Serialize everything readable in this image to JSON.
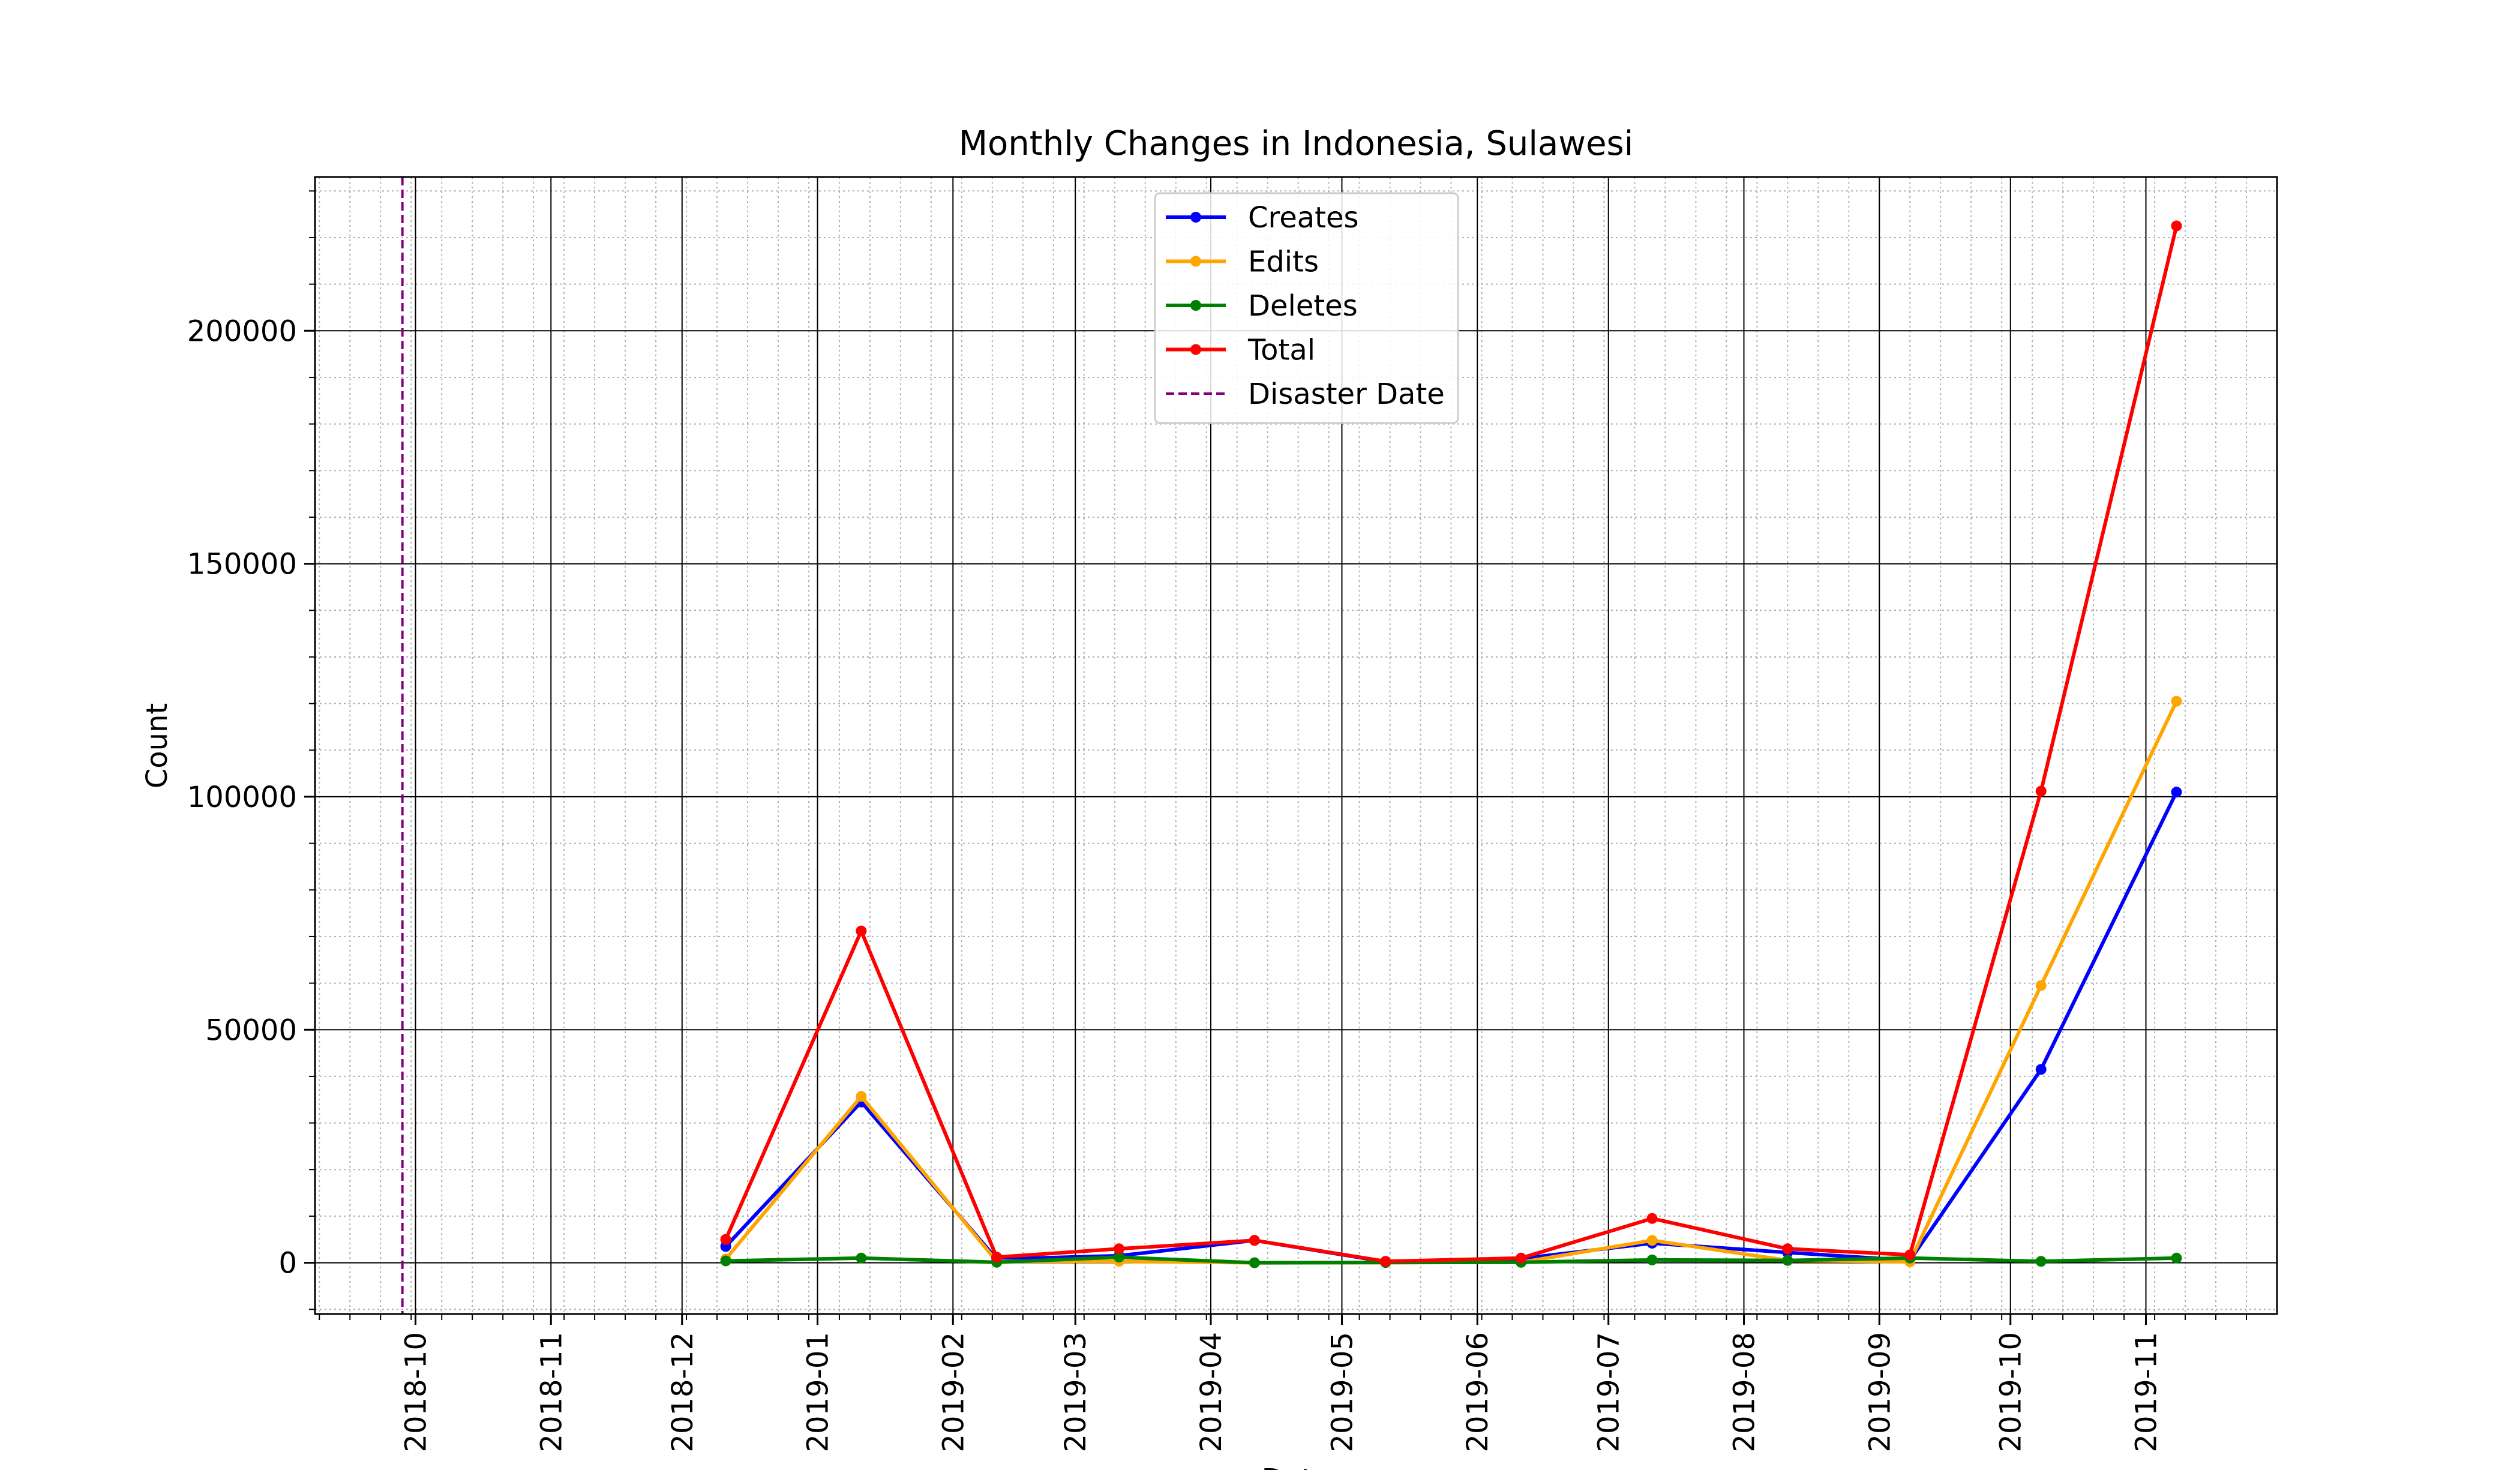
{
  "chart_data": {
    "type": "line",
    "title": "Monthly Changes in Indonesia, Sulawesi",
    "xlabel": "Date",
    "ylabel": "Count",
    "grid": true,
    "legend_position": "top-center",
    "xlim": [
      "2018-09-08",
      "2019-12-01"
    ],
    "ylim": [
      -11000,
      233000
    ],
    "yticks": [
      0,
      50000,
      100000,
      150000,
      200000
    ],
    "xticks": [
      "2018-10",
      "2018-11",
      "2018-12",
      "2019-01",
      "2019-02",
      "2019-03",
      "2019-04",
      "2019-05",
      "2019-06",
      "2019-07",
      "2019-08",
      "2019-09",
      "2019-10",
      "2019-11"
    ],
    "x": [
      "2018-12-11",
      "2019-01-11",
      "2019-02-11",
      "2019-03-11",
      "2019-04-11",
      "2019-05-11",
      "2019-06-11",
      "2019-07-11",
      "2019-08-11",
      "2019-09-08",
      "2019-10-08",
      "2019-11-08"
    ],
    "series": [
      {
        "name": "Creates",
        "color": "#0000ff",
        "values": [
          3500,
          34500,
          800,
          1500,
          4800,
          200,
          900,
          4200,
          2200,
          500,
          41500,
          101000
        ]
      },
      {
        "name": "Edits",
        "color": "#ffa500",
        "values": [
          800,
          35700,
          300,
          300,
          0,
          50,
          100,
          4800,
          500,
          200,
          59500,
          120500
        ]
      },
      {
        "name": "Deletes",
        "color": "#008000",
        "values": [
          400,
          1000,
          100,
          1200,
          0,
          50,
          100,
          600,
          500,
          1000,
          300,
          1000
        ]
      },
      {
        "name": "Total",
        "color": "#ff0000",
        "values": [
          5000,
          71200,
          1200,
          3000,
          4800,
          300,
          1000,
          9500,
          3000,
          1700,
          101200,
          222500
        ]
      }
    ],
    "reference_lines": [
      {
        "name": "Disaster Date",
        "date": "2018-09-28",
        "color": "#800080",
        "style": "dashed"
      }
    ]
  }
}
